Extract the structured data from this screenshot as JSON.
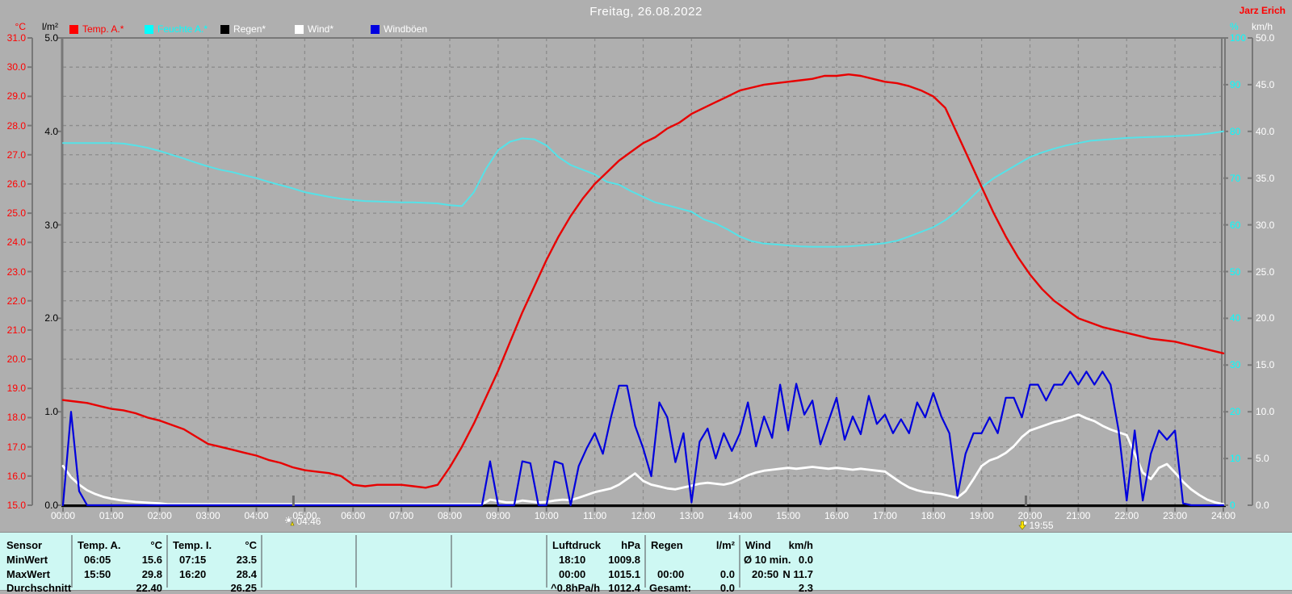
{
  "header": {
    "title": "Freitag, 26.08.2022",
    "author": "Jarz Erich"
  },
  "legend": [
    {
      "label": "Temp. A.*",
      "swatch": "#ff0000",
      "text_color": "#ff0000"
    },
    {
      "label": "Feuchte A.*",
      "swatch": "#00ffff",
      "text_color": "#00ffff"
    },
    {
      "label": "Regen*",
      "swatch": "#000000",
      "text_color": "#ffffff"
    },
    {
      "label": "Wind*",
      "swatch": "#ffffff",
      "text_color": "#ffffff"
    },
    {
      "label": "Windböen",
      "swatch": "#0000e0",
      "text_color": "#ffffff"
    }
  ],
  "axes": {
    "left_temp": {
      "unit": "°C",
      "color": "#ff0000",
      "ticks": [
        "31.0",
        "30.0",
        "29.0",
        "28.0",
        "27.0",
        "26.0",
        "25.0",
        "24.0",
        "23.0",
        "22.0",
        "21.0",
        "20.0",
        "19.0",
        "18.0",
        "17.0",
        "16.0",
        "15.0"
      ]
    },
    "left_rain": {
      "unit": "l/m²",
      "color": "#000000",
      "ticks": [
        "5.0",
        "4.0",
        "3.0",
        "2.0",
        "1.0",
        "0.0"
      ]
    },
    "right_hum": {
      "unit": "%",
      "color": "#00ffff",
      "ticks": [
        "100",
        "90",
        "80",
        "70",
        "60",
        "50",
        "40",
        "30",
        "20",
        "10",
        "0"
      ]
    },
    "right_wind": {
      "unit": "km/h",
      "color": "#ffffff",
      "ticks": [
        "50.0",
        "45.0",
        "40.0",
        "35.0",
        "30.0",
        "25.0",
        "20.0",
        "15.0",
        "10.0",
        "5.0",
        "0.0"
      ]
    },
    "x": {
      "labels": [
        "00:00",
        "01:00",
        "02:00",
        "03:00",
        "04:00",
        "05:00",
        "06:00",
        "07:00",
        "08:00",
        "09:00",
        "10:00",
        "11:00",
        "12:00",
        "13:00",
        "14:00",
        "15:00",
        "16:00",
        "17:00",
        "18:00",
        "19:00",
        "20:00",
        "21:00",
        "22:00",
        "23:00",
        "24:00"
      ]
    }
  },
  "markers": {
    "sunrise": {
      "icon": "sunrise-icon",
      "time": "04:46"
    },
    "sunset": {
      "icon": "sunset-icon",
      "time": "19:55"
    }
  },
  "chart_data": {
    "type": "line",
    "title": "Freitag, 26.08.2022",
    "x_unit": "hours",
    "x_range": [
      0,
      24
    ],
    "grid": true,
    "axes": {
      "temp": {
        "unit": "°C",
        "range": [
          15,
          31
        ]
      },
      "humidity": {
        "unit": "%",
        "range": [
          0,
          100
        ]
      },
      "rain": {
        "unit": "l/m²",
        "range": [
          0,
          5
        ]
      },
      "wind": {
        "unit": "km/h",
        "range": [
          0,
          50
        ]
      }
    },
    "series": [
      {
        "name": "Feuchte A.",
        "axis": "humidity",
        "color": "#55e2e8",
        "width": 2,
        "x_start": 0,
        "x_step": 0.25,
        "values": [
          77.5,
          77.5,
          77.5,
          77.5,
          77.5,
          77.4,
          77.0,
          76.5,
          75.8,
          75.0,
          74.2,
          73.3,
          72.5,
          71.8,
          71.3,
          70.6,
          70.0,
          69.2,
          68.5,
          67.8,
          67.0,
          66.5,
          66.0,
          65.6,
          65.3,
          65.1,
          65.0,
          64.9,
          64.8,
          64.8,
          64.7,
          64.6,
          64.2,
          64.0,
          67.0,
          72.0,
          76.0,
          77.8,
          78.5,
          78.3,
          77.0,
          74.5,
          72.8,
          71.8,
          70.8,
          69.2,
          68.6,
          67.2,
          66.0,
          64.8,
          64.2,
          63.5,
          62.8,
          61.2,
          60.3,
          59.0,
          57.5,
          56.5,
          56.0,
          55.8,
          55.6,
          55.4,
          55.3,
          55.3,
          55.3,
          55.4,
          55.6,
          55.8,
          56.1,
          56.6,
          57.5,
          58.5,
          59.5,
          61.0,
          63.0,
          65.5,
          68.0,
          70.0,
          71.5,
          73.0,
          74.5,
          75.5,
          76.3,
          77.0,
          77.5,
          78.0,
          78.2,
          78.4,
          78.6,
          78.7,
          78.8,
          78.9,
          79.0,
          79.1,
          79.3,
          79.6,
          80.0
        ]
      },
      {
        "name": "Temp. A.",
        "axis": "temp",
        "color": "#e80000",
        "width": 2.4,
        "x_start": 0,
        "x_step": 0.25,
        "values": [
          18.6,
          18.55,
          18.5,
          18.4,
          18.3,
          18.25,
          18.15,
          18.0,
          17.9,
          17.75,
          17.6,
          17.35,
          17.1,
          17.0,
          16.9,
          16.8,
          16.7,
          16.55,
          16.45,
          16.3,
          16.2,
          16.15,
          16.1,
          16.0,
          15.7,
          15.65,
          15.7,
          15.7,
          15.7,
          15.65,
          15.6,
          15.7,
          16.3,
          17.0,
          17.8,
          18.7,
          19.6,
          20.6,
          21.6,
          22.5,
          23.4,
          24.2,
          24.9,
          25.5,
          26.0,
          26.4,
          26.8,
          27.1,
          27.4,
          27.6,
          27.9,
          28.1,
          28.4,
          28.6,
          28.8,
          29.0,
          29.2,
          29.3,
          29.4,
          29.45,
          29.5,
          29.55,
          29.6,
          29.7,
          29.7,
          29.75,
          29.7,
          29.6,
          29.5,
          29.45,
          29.35,
          29.2,
          29.0,
          28.6,
          27.7,
          26.8,
          25.9,
          25.0,
          24.2,
          23.5,
          22.9,
          22.4,
          22.0,
          21.7,
          21.4,
          21.25,
          21.1,
          21.0,
          20.9,
          20.8,
          20.7,
          20.65,
          20.6,
          20.5,
          20.4,
          20.3,
          20.2
        ]
      },
      {
        "name": "Regen",
        "axis": "rain",
        "color": "#000000",
        "width": 2,
        "x_start": 0,
        "x_step": 24,
        "values": [
          0,
          0
        ]
      },
      {
        "name": "Wind",
        "axis": "wind",
        "color": "#ffffff",
        "width": 2.8,
        "x_start": 0,
        "x_step": 0.1666667,
        "values": [
          4.2,
          3.0,
          2.2,
          1.6,
          1.2,
          0.9,
          0.7,
          0.55,
          0.45,
          0.35,
          0.3,
          0.25,
          0.2,
          0.1,
          0.1,
          0.1,
          0.1,
          0.1,
          0.1,
          0.1,
          0.1,
          0.1,
          0.1,
          0.1,
          0.1,
          0.1,
          0.1,
          0.1,
          0.1,
          0.1,
          0.1,
          0.1,
          0.1,
          0.1,
          0.1,
          0.1,
          0.1,
          0.1,
          0.1,
          0.1,
          0.1,
          0.1,
          0.1,
          0.1,
          0.1,
          0.1,
          0.1,
          0.1,
          0.1,
          0.1,
          0.1,
          0.1,
          0.1,
          0.6,
          0.45,
          0.3,
          0.3,
          0.5,
          0.4,
          0.3,
          0.35,
          0.5,
          0.6,
          0.55,
          0.8,
          1.1,
          1.4,
          1.6,
          1.8,
          2.2,
          2.8,
          3.4,
          2.6,
          2.2,
          2.0,
          1.8,
          1.7,
          1.9,
          2.1,
          2.3,
          2.4,
          2.3,
          2.2,
          2.4,
          2.8,
          3.2,
          3.5,
          3.7,
          3.8,
          3.9,
          4.0,
          3.9,
          4.0,
          4.1,
          4.0,
          3.9,
          4.0,
          3.9,
          3.8,
          3.9,
          3.8,
          3.7,
          3.6,
          3.0,
          2.4,
          1.9,
          1.6,
          1.4,
          1.3,
          1.2,
          1.0,
          0.8,
          1.5,
          2.8,
          4.2,
          4.8,
          5.1,
          5.6,
          6.3,
          7.3,
          8.0,
          8.3,
          8.6,
          8.9,
          9.1,
          9.4,
          9.7,
          9.3,
          9.0,
          8.5,
          8.1,
          7.8,
          7.5,
          5.5,
          3.5,
          2.8,
          4.0,
          4.4,
          3.5,
          2.5,
          1.7,
          1.1,
          0.6,
          0.3,
          0.1
        ]
      },
      {
        "name": "Windböen",
        "axis": "wind",
        "color": "#0000dd",
        "width": 2.2,
        "x_start": 0,
        "x_step": 0.1666667,
        "values": [
          0,
          10.0,
          1.5,
          0,
          0,
          0,
          0,
          0,
          0,
          0,
          0,
          0,
          0,
          0,
          0,
          0,
          0,
          0,
          0,
          0,
          0,
          0,
          0,
          0,
          0,
          0,
          0,
          0,
          0,
          0,
          0,
          0,
          0,
          0,
          0,
          0,
          0,
          0,
          0,
          0,
          0,
          0,
          0,
          0,
          0,
          0,
          0,
          0,
          0,
          0,
          0,
          0,
          0,
          4.7,
          0,
          0,
          0,
          4.7,
          4.5,
          0,
          0,
          4.7,
          4.4,
          0,
          4.2,
          6.1,
          7.7,
          5.5,
          9.4,
          12.8,
          12.8,
          8.5,
          6.1,
          3.1,
          11.0,
          9.4,
          4.6,
          7.7,
          0.3,
          6.8,
          8.2,
          5.0,
          7.7,
          5.8,
          7.7,
          11.0,
          6.3,
          9.5,
          7.2,
          12.9,
          8.0,
          13.0,
          9.7,
          11.2,
          6.5,
          9.0,
          11.5,
          7.0,
          9.5,
          7.6,
          11.7,
          8.7,
          9.7,
          7.7,
          9.2,
          7.7,
          11.0,
          9.4,
          12.0,
          9.5,
          7.7,
          1.0,
          5.5,
          7.7,
          7.7,
          9.4,
          7.7,
          11.5,
          11.5,
          9.4,
          12.9,
          12.9,
          11.2,
          12.9,
          12.9,
          14.3,
          12.9,
          14.3,
          12.9,
          14.3,
          12.9,
          8.0,
          0.5,
          8.0,
          0.5,
          5.5,
          8.0,
          7.0,
          8.0,
          0.2,
          0,
          0,
          0,
          0,
          0
        ]
      }
    ]
  },
  "table": {
    "row_headers": [
      "Sensor",
      "MinWert",
      "MaxWert",
      "Durchschnitt"
    ],
    "columns": [
      {
        "name": "Temp. A.",
        "unit": "°C",
        "rows": [
          [
            "06:05",
            "15.6"
          ],
          [
            "15:50",
            "29.8"
          ],
          [
            "",
            "22.40"
          ]
        ]
      },
      {
        "name": "Temp. I.",
        "unit": "°C",
        "rows": [
          [
            "07:15",
            "23.5"
          ],
          [
            "16:20",
            "28.4"
          ],
          [
            "",
            "26.25"
          ]
        ]
      },
      {
        "name": "",
        "unit": "",
        "rows": [
          [
            "",
            ""
          ],
          [
            "",
            ""
          ],
          [
            "",
            ""
          ]
        ]
      },
      {
        "name": "",
        "unit": "",
        "rows": [
          [
            "",
            ""
          ],
          [
            "",
            ""
          ],
          [
            "",
            ""
          ]
        ]
      },
      {
        "name": "",
        "unit": "",
        "rows": [
          [
            "",
            ""
          ],
          [
            "",
            ""
          ],
          [
            "",
            ""
          ]
        ]
      },
      {
        "name": "Luftdruck",
        "unit": "hPa",
        "rows": [
          [
            "18:10",
            "1009.8"
          ],
          [
            "00:00",
            "1015.1"
          ],
          [
            "^0.8hPa/h",
            "1012.4"
          ]
        ]
      },
      {
        "name": "Regen",
        "unit": "l/m²",
        "rows": [
          [
            "",
            ""
          ],
          [
            "00:00",
            "0.0"
          ],
          [
            "Gesamt:",
            "0.0"
          ]
        ]
      },
      {
        "name": "Wind",
        "unit": "km/h",
        "rows": [
          [
            "Ø 10 min.",
            "0.0"
          ],
          [
            "20:50",
            "N 11.7"
          ],
          [
            "",
            "2.3"
          ]
        ]
      }
    ]
  }
}
